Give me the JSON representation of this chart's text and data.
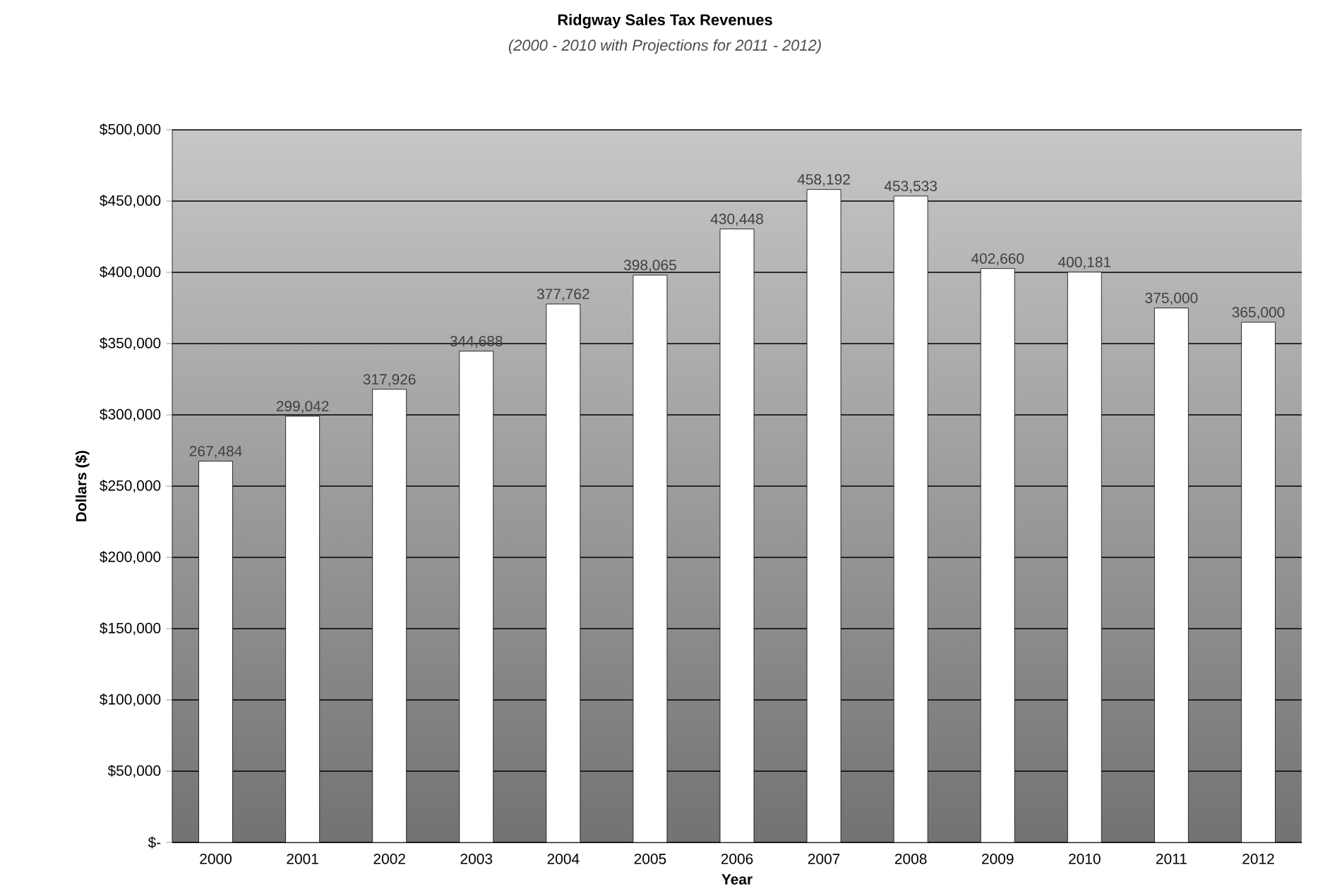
{
  "chart_data": {
    "type": "bar",
    "title": "Ridgway Sales Tax Revenues",
    "subtitle": "(2000 - 2010 with Projections for 2011 - 2012)",
    "xlabel": "Year",
    "ylabel": "Dollars ($)",
    "categories": [
      "2000",
      "2001",
      "2002",
      "2003",
      "2004",
      "2005",
      "2006",
      "2007",
      "2008",
      "2009",
      "2010",
      "2011",
      "2012"
    ],
    "values": [
      267484,
      299042,
      317926,
      344688,
      377762,
      398065,
      430448,
      458192,
      453533,
      402660,
      400181,
      375000,
      365000
    ],
    "value_labels": [
      "267,484",
      "299,042",
      "317,926",
      "344,688",
      "377,762",
      "398,065",
      "430,448",
      "458,192",
      "453,533",
      "402,660",
      "400,181",
      "375,000",
      "365,000"
    ],
    "color": "#ffffff",
    "ylim": [
      0,
      500000
    ],
    "yticks": [
      {
        "value": 0,
        "label": "$-"
      },
      {
        "value": 50000,
        "label": "$50,000"
      },
      {
        "value": 100000,
        "label": "$100,000"
      },
      {
        "value": 150000,
        "label": "$150,000"
      },
      {
        "value": 200000,
        "label": "$200,000"
      },
      {
        "value": 250000,
        "label": "$250,000"
      },
      {
        "value": 300000,
        "label": "$300,000"
      },
      {
        "value": 350000,
        "label": "$350,000"
      },
      {
        "value": 400000,
        "label": "$400,000"
      },
      {
        "value": 450000,
        "label": "$450,000"
      },
      {
        "value": 500000,
        "label": "$500,000"
      }
    ],
    "grid": "y"
  }
}
